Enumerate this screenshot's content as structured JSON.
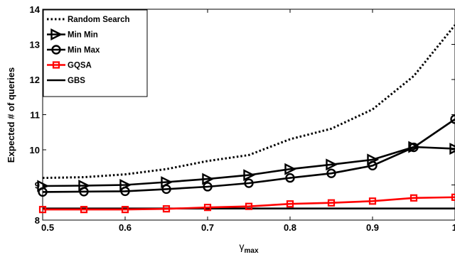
{
  "chart_data": {
    "type": "line",
    "xlabel": "γ",
    "xlabel_sub": "max",
    "ylabel": "Expected # of queries",
    "xlim": [
      0.5,
      1.0
    ],
    "ylim": [
      8.0,
      14.0
    ],
    "x_ticks": [
      "0.5",
      "0.6",
      "0.7",
      "0.8",
      "0.9",
      "1"
    ],
    "y_ticks": [
      "8",
      "9",
      "10",
      "11",
      "12",
      "13",
      "14"
    ],
    "x": [
      0.5,
      0.55,
      0.6,
      0.65,
      0.7,
      0.75,
      0.8,
      0.85,
      0.9,
      0.95,
      1.0
    ],
    "grid": false,
    "legend_position": "top-left",
    "series": [
      {
        "name": "Random Search",
        "style": "dotted",
        "color": "#000000",
        "values": [
          9.2,
          9.22,
          9.3,
          9.45,
          9.68,
          9.85,
          10.3,
          10.6,
          11.15,
          12.1,
          13.55
        ]
      },
      {
        "name": "Min Min",
        "style": "solid",
        "marker": "triangle-right",
        "color": "#000000",
        "values": [
          8.97,
          8.98,
          9.0,
          9.08,
          9.17,
          9.28,
          9.45,
          9.58,
          9.72,
          10.08,
          10.03
        ]
      },
      {
        "name": "Min Max",
        "style": "solid",
        "marker": "circle",
        "color": "#000000",
        "values": [
          8.8,
          8.81,
          8.82,
          8.88,
          8.95,
          9.05,
          9.2,
          9.33,
          9.55,
          10.07,
          10.87
        ]
      },
      {
        "name": "GQSA",
        "style": "solid",
        "marker": "square",
        "color": "#ff0000",
        "values": [
          8.3,
          8.3,
          8.3,
          8.32,
          8.36,
          8.39,
          8.46,
          8.49,
          8.54,
          8.63,
          8.65
        ]
      },
      {
        "name": "GBS",
        "style": "solid",
        "color": "#000000",
        "values": [
          8.33,
          8.33,
          8.33,
          8.33,
          8.33,
          8.33,
          8.33,
          8.33,
          8.33,
          8.33,
          8.33
        ]
      }
    ]
  }
}
